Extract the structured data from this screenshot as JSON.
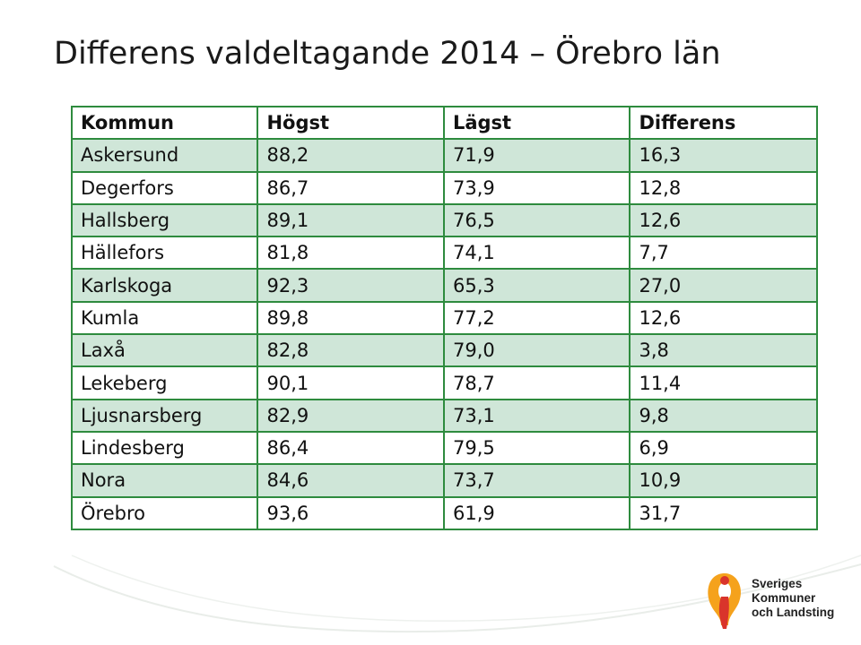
{
  "title": "Differens valdeltagande 2014 – Örebro län",
  "table": {
    "headers": [
      "Kommun",
      "Högst",
      "Lägst",
      "Differens"
    ],
    "rows": [
      [
        "Askersund",
        "88,2",
        "71,9",
        "16,3"
      ],
      [
        "Degerfors",
        "86,7",
        "73,9",
        "12,8"
      ],
      [
        "Hallsberg",
        "89,1",
        "76,5",
        "12,6"
      ],
      [
        "Hällefors",
        "81,8",
        "74,1",
        "7,7"
      ],
      [
        "Karlskoga",
        "92,3",
        "65,3",
        "27,0"
      ],
      [
        "Kumla",
        "89,8",
        "77,2",
        "12,6"
      ],
      [
        "Laxå",
        "82,8",
        "79,0",
        "3,8"
      ],
      [
        "Lekeberg",
        "90,1",
        "78,7",
        "11,4"
      ],
      [
        "Ljusnarsberg",
        "82,9",
        "73,1",
        "9,8"
      ],
      [
        "Lindesberg",
        "86,4",
        "79,5",
        "6,9"
      ],
      [
        "Nora",
        "84,6",
        "73,7",
        "10,9"
      ],
      [
        "Örebro",
        "93,6",
        "61,9",
        "31,7"
      ]
    ]
  },
  "logo": {
    "icon": "skl-figure-icon",
    "lines": [
      "Sveriges",
      "Kommuner",
      "och Landsting"
    ]
  },
  "colors": {
    "border": "#2e8b3e",
    "row_shade": "#cfe6d8",
    "logo_orange": "#f5a21c",
    "logo_red": "#d9342b"
  }
}
